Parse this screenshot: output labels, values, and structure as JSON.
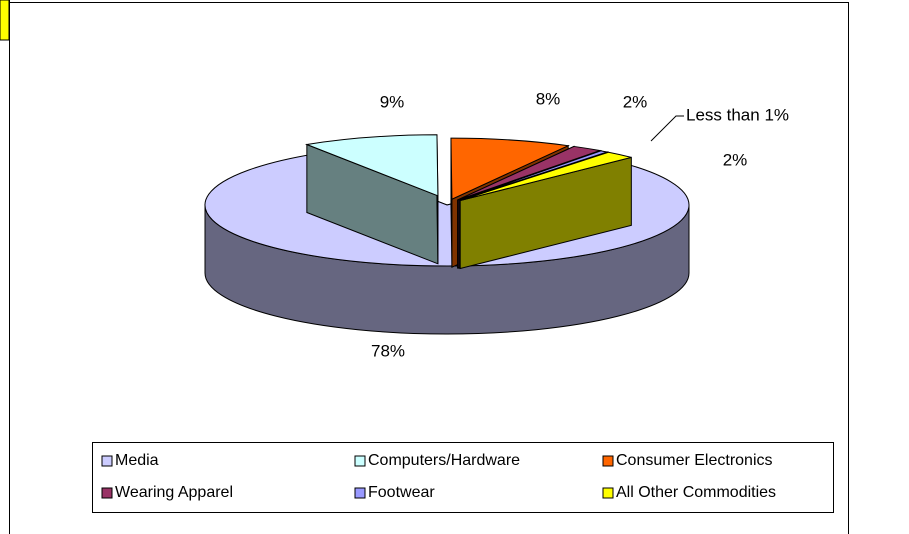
{
  "chart_data": {
    "type": "pie",
    "three_d": true,
    "categories": [
      "Media",
      "Computers/Hardware",
      "Consumer Electronics",
      "Wearing Apparel",
      "Footwear",
      "All Other Commodities"
    ],
    "values": [
      78,
      9,
      8,
      2,
      0.5,
      2
    ],
    "value_labels": [
      "78%",
      "9%",
      "8%",
      "2%",
      "Less than 1%",
      "2%"
    ],
    "colors": [
      "#ccccff",
      "#ccffff",
      "#ff6600",
      "#993366",
      "#9999ff",
      "#ffff00"
    ],
    "legend": "bottom"
  }
}
